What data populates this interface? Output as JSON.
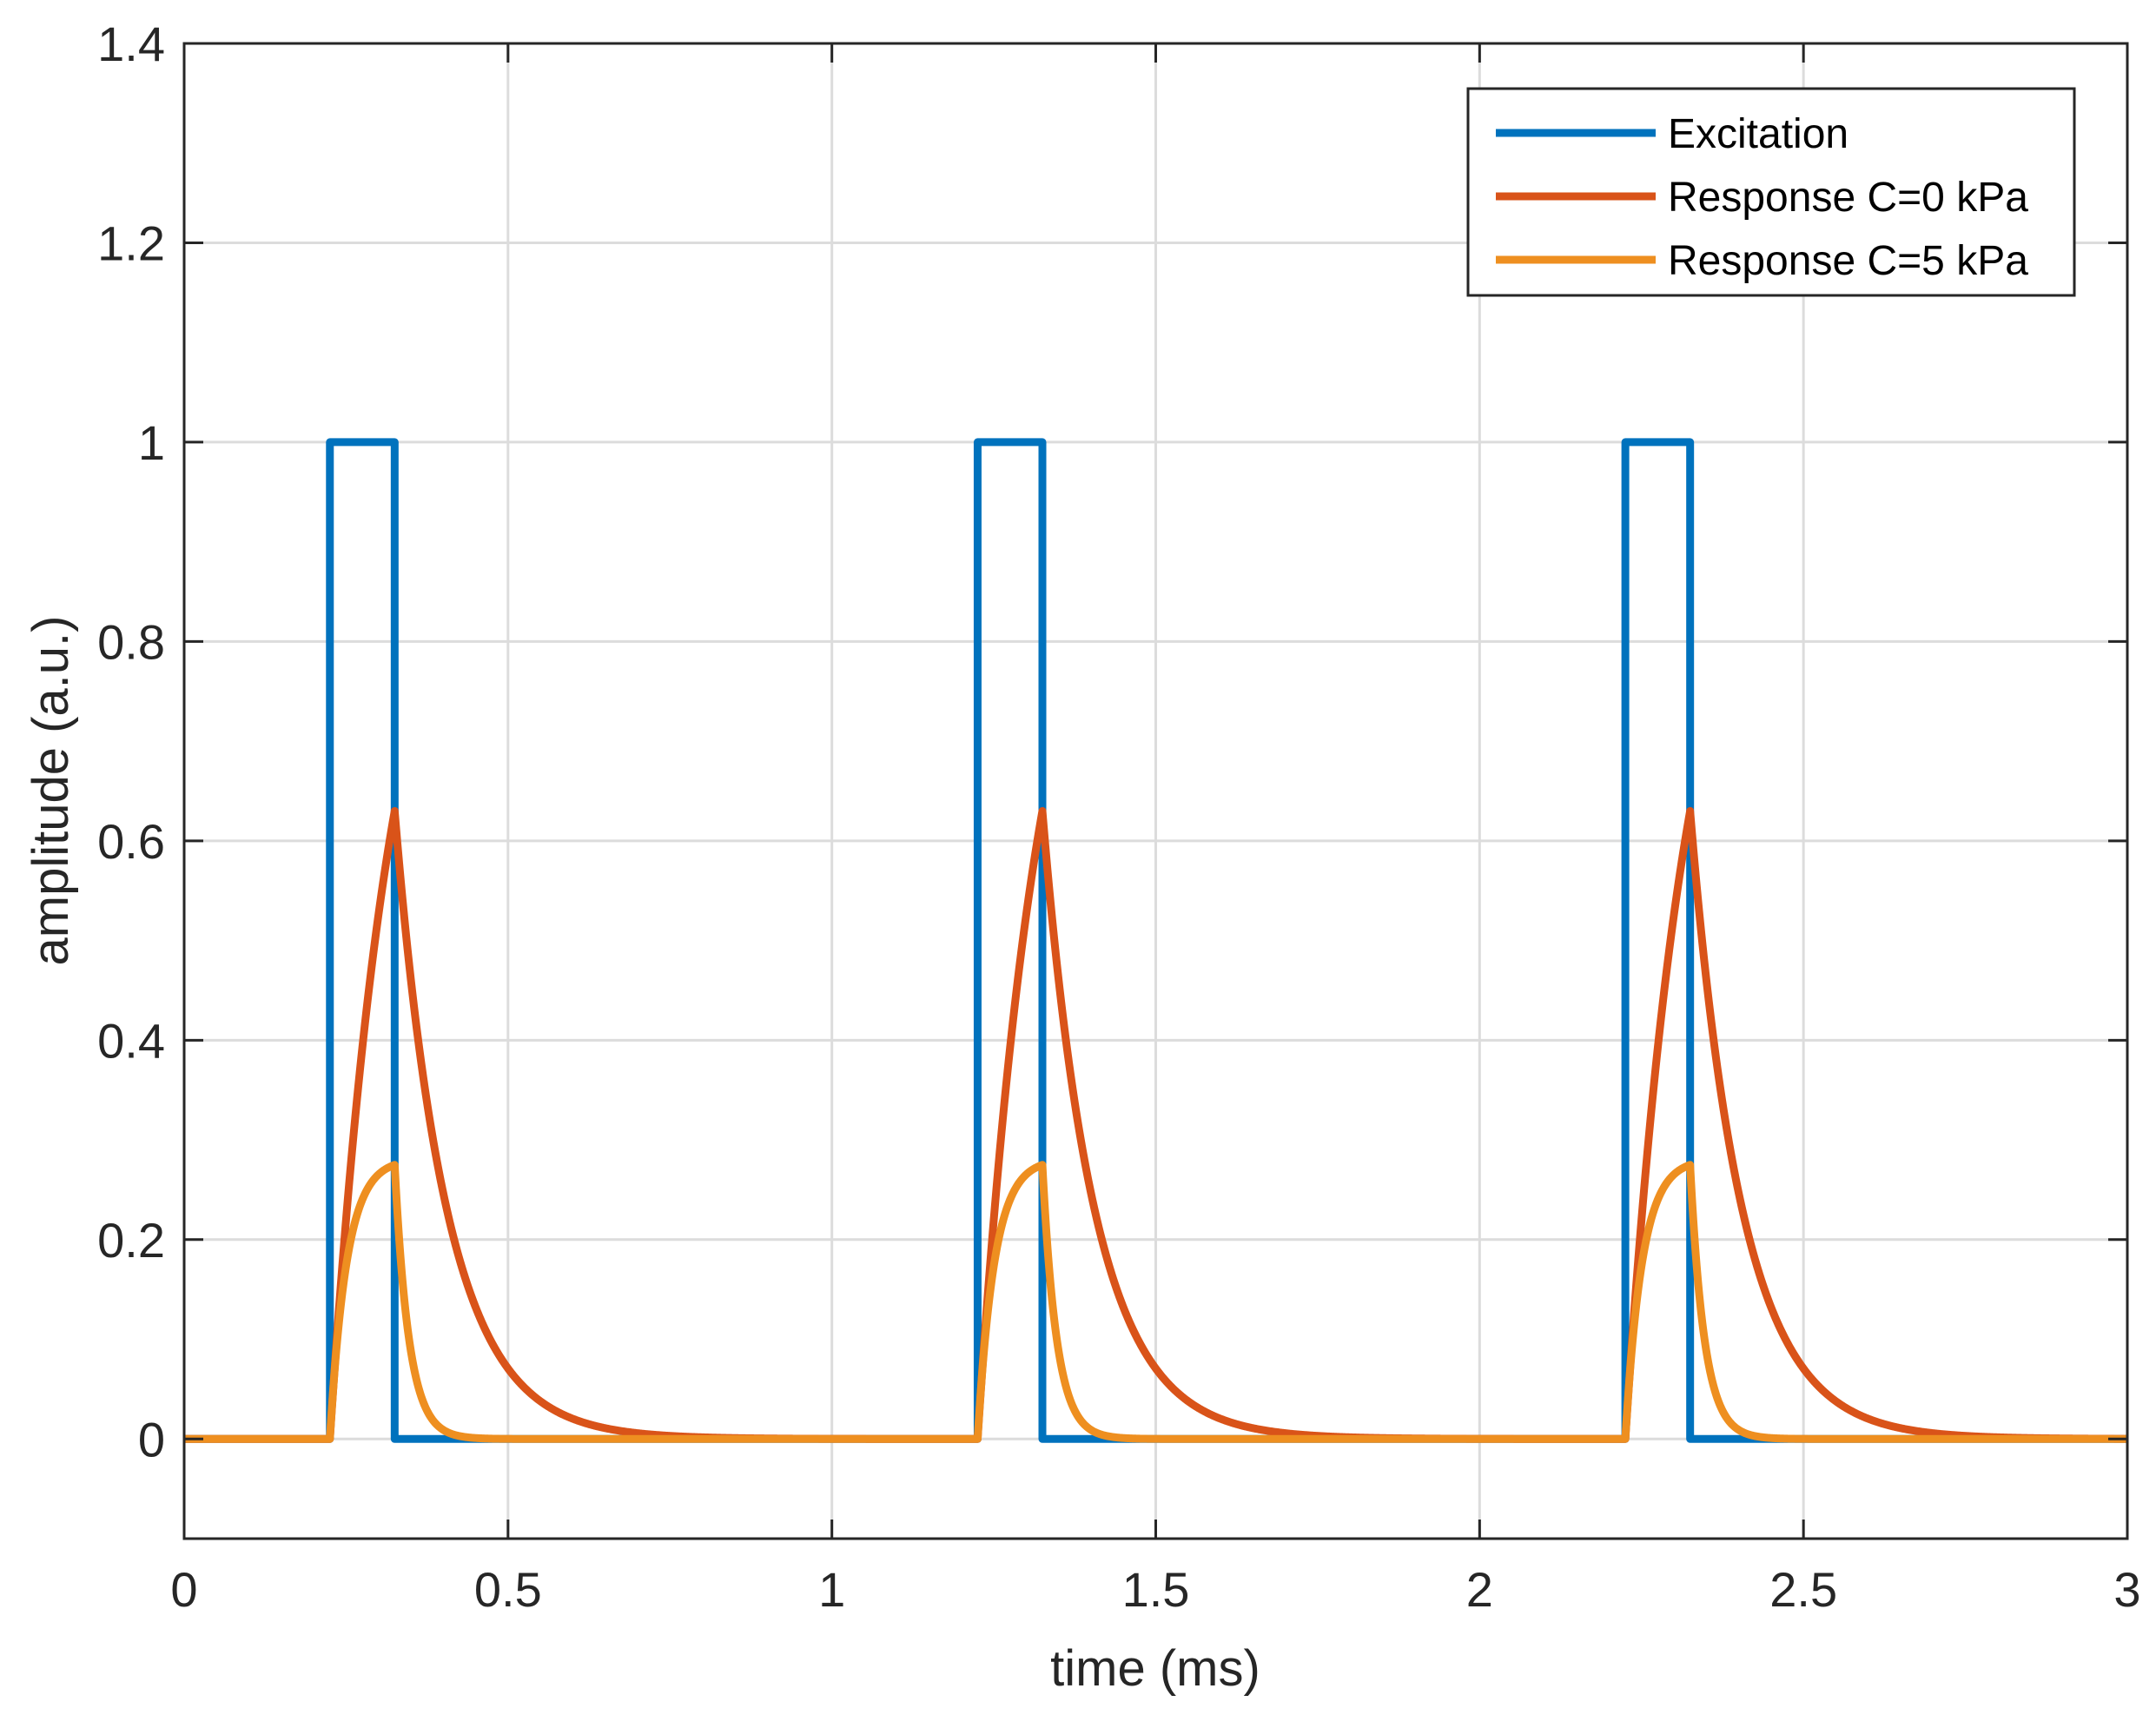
{
  "chart_data": {
    "type": "line",
    "title": "",
    "xlabel": "time (ms)",
    "ylabel": "amplitude (a.u.)",
    "xlim": [
      0,
      3
    ],
    "ylim": [
      -0.1,
      1.4
    ],
    "xticks": [
      0,
      0.5,
      1,
      1.5,
      2,
      2.5,
      3
    ],
    "xtick_labels": [
      "0",
      "0.5",
      "1",
      "1.5",
      "2",
      "2.5",
      "3"
    ],
    "yticks": [
      0,
      0.2,
      0.4,
      0.6,
      0.8,
      1,
      1.2,
      1.4
    ],
    "ytick_labels": [
      "0",
      "0.2",
      "0.4",
      "0.6",
      "0.8",
      "1",
      "1.2",
      "1.4"
    ],
    "grid": true,
    "legend_position": "top-right",
    "pulse_period_ms": 1.0,
    "pulse_onsets_ms": [
      0.225,
      1.225,
      2.225
    ],
    "pulse_width_ms": 0.1,
    "series": [
      {
        "name": "Excitation",
        "color": "#0072BD",
        "kind": "square-pulse",
        "amplitude": 1.0
      },
      {
        "name": "Response C=0 kPa",
        "color": "#D95319",
        "kind": "rc-response",
        "peak": 0.63,
        "rise_tau_ms": 0.1,
        "decay_tau_ms": 0.08
      },
      {
        "name": "Response C=5 kPa",
        "color": "#EDB120",
        "display_color": "#EE8F20",
        "kind": "rc-response",
        "peak": 0.275,
        "rise_tau_ms": 0.026,
        "decay_tau_ms": 0.022
      }
    ]
  }
}
